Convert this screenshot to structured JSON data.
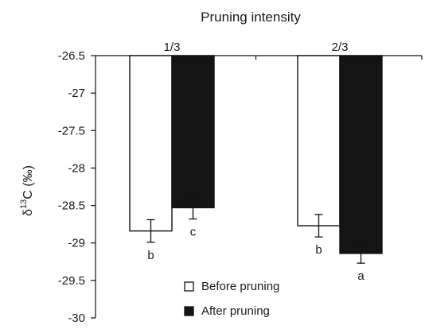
{
  "chart_data": {
    "type": "bar",
    "title": "Pruning intensity",
    "ylabel_parts": {
      "delta": "δ",
      "sup": "13",
      "rest": "C (‰)"
    },
    "ylim": [
      -30,
      -26.5
    ],
    "y_axis_at_top": true,
    "yticks": [
      -26.5,
      -27,
      -27.5,
      -28,
      -28.5,
      -29,
      -29.5,
      -30
    ],
    "ytick_labels": [
      "-26.5",
      "-27",
      "-27.5",
      "-28",
      "-28.5",
      "-29",
      "-29.5",
      "-30"
    ],
    "categories": [
      "1/3",
      "2/3"
    ],
    "series": [
      {
        "name": "Before pruning",
        "fill": "#ffffff",
        "stroke": "#111111",
        "values": [
          -28.84,
          -28.77
        ],
        "errors": [
          0.15,
          0.15
        ],
        "letters": [
          "b",
          "b"
        ]
      },
      {
        "name": "After pruning",
        "fill": "#141414",
        "stroke": "#111111",
        "values": [
          -28.53,
          -29.14
        ],
        "errors": [
          0.15,
          0.13
        ],
        "letters": [
          "c",
          "a"
        ]
      }
    ],
    "legend_placement": "bottom-center",
    "grid": false
  }
}
